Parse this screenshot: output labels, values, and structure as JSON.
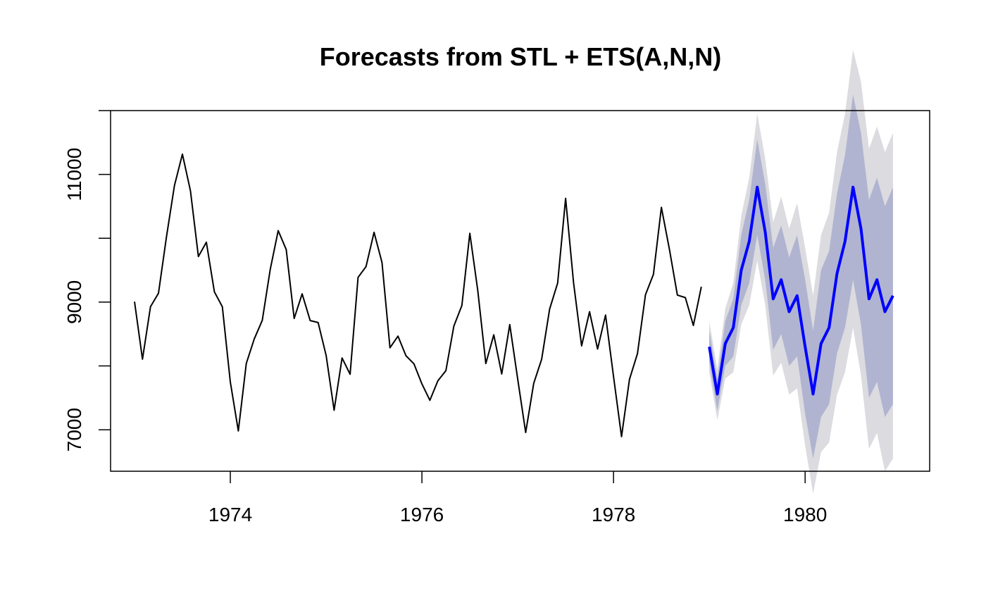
{
  "chart_data": {
    "type": "line",
    "title": "Forecasts from STL +  ETS(A,N,N)",
    "xlabel": "",
    "ylabel": "",
    "xlim": [
      1972.75,
      1981.3
    ],
    "ylim": [
      6350,
      12000
    ],
    "x_ticks": [
      1974,
      1976,
      1978,
      1980
    ],
    "x_tick_labels": [
      "1974",
      "1976",
      "1978",
      "1980"
    ],
    "y_ticks": [
      7000,
      8000,
      9000,
      10000,
      11000,
      12000
    ],
    "y_tick_labels": [
      "7000",
      "",
      "9000",
      "",
      "11000",
      ""
    ],
    "grid": false,
    "legend": "none",
    "colors": {
      "history": "#000000",
      "forecast": "#0000ff",
      "band80": "#b0b4d0",
      "band95": "#dbdbe0"
    },
    "series": [
      {
        "role": "history",
        "start": 1973.0,
        "step": 0.0833333333,
        "values": [
          9007,
          8106,
          8928,
          9137,
          10017,
          10826,
          11317,
          10744,
          9713,
          9938,
          9161,
          8927,
          7750,
          6981,
          8038,
          8422,
          8714,
          9512,
          10120,
          9823,
          8743,
          9129,
          8710,
          8680,
          8162,
          7306,
          8124,
          7870,
          9387,
          9556,
          10093,
          9620,
          8285,
          8466,
          8160,
          8034,
          7717,
          7461,
          7767,
          7925,
          8623,
          8945,
          10078,
          9179,
          8037,
          8488,
          7874,
          8647,
          7792,
          6957,
          7726,
          8106,
          8890,
          9299,
          10625,
          9302,
          8314,
          8850,
          8265,
          8796,
          7836,
          6892,
          7791,
          8192,
          9115,
          9434,
          10484,
          9827,
          9110,
          9070,
          8633,
          9240
        ]
      },
      {
        "role": "forecast",
        "start": 1979.0,
        "step": 0.0833333333,
        "values": [
          8300,
          7560,
          8350,
          8600,
          9500,
          9950,
          10800,
          10100,
          9050,
          9350,
          8850,
          9100,
          8300,
          7560,
          8350,
          8600,
          9450,
          9950,
          10800,
          10150,
          9050,
          9350,
          8850,
          9100
        ],
        "lo80": [
          8050,
          7300,
          8000,
          8150,
          8950,
          9300,
          10050,
          9350,
          8250,
          8500,
          8000,
          8150,
          7250,
          6550,
          7200,
          7400,
          8200,
          8600,
          9350,
          8650,
          7500,
          7750,
          7200,
          7400
        ],
        "hi80": [
          8550,
          7800,
          8700,
          9050,
          10050,
          10600,
          11550,
          10850,
          9850,
          10200,
          9700,
          10050,
          9350,
          8550,
          9500,
          9800,
          10700,
          11300,
          12250,
          11650,
          10600,
          10950,
          10500,
          10800
        ],
        "lo95": [
          7900,
          7150,
          7800,
          7900,
          8650,
          8950,
          9650,
          8950,
          7850,
          8050,
          7550,
          7650,
          6750,
          6000,
          6650,
          6800,
          7550,
          7900,
          8600,
          7850,
          6700,
          6950,
          6350,
          6550
        ],
        "hi95": [
          8700,
          7950,
          8900,
          9300,
          10350,
          10950,
          11950,
          11250,
          10250,
          10650,
          10150,
          10550,
          9850,
          9100,
          10050,
          10400,
          11350,
          11950,
          12950,
          12450,
          11400,
          11750,
          11350,
          11650
        ]
      }
    ]
  }
}
